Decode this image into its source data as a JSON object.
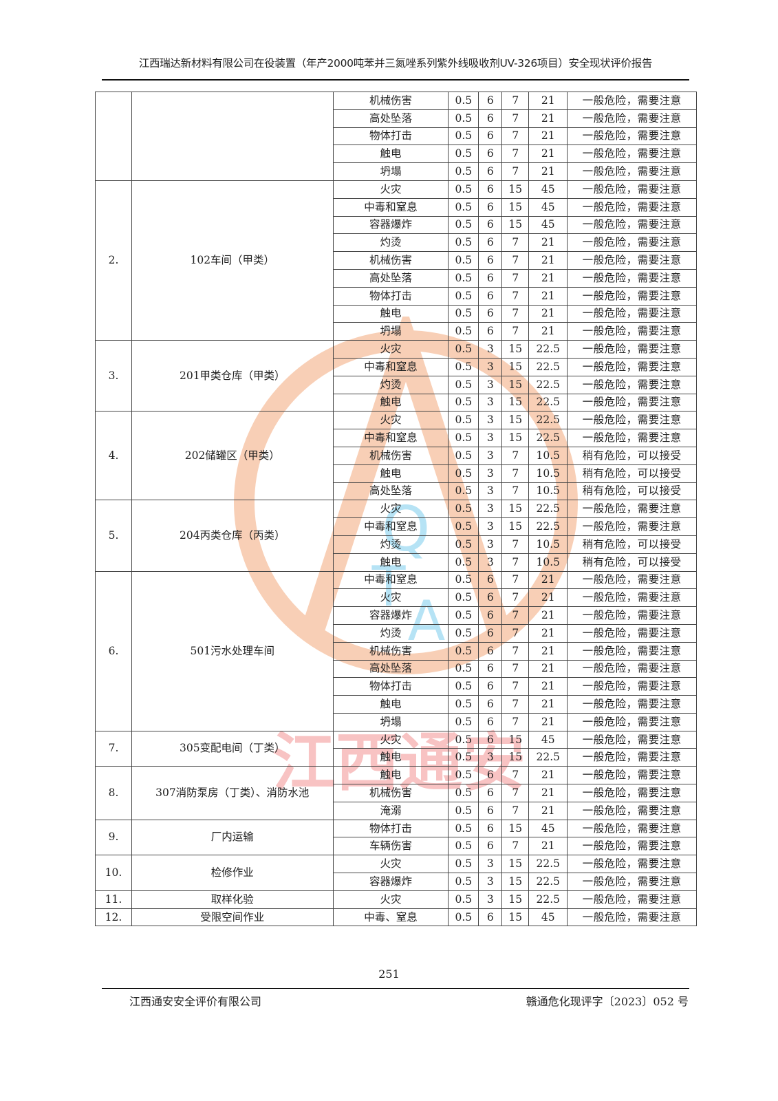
{
  "header": {
    "title": "江西瑞达新材料有限公司在役装置（年产2000吨苯并三氮唑系列紫外线吸收剂UV-326项目）安全现状评价报告"
  },
  "watermark": {
    "logo_text": "QTA",
    "stamp_text": "江西通安",
    "colors": {
      "ring": "#f08a4b",
      "letters": "#4bbbe8",
      "stamp": "#f06a6a"
    }
  },
  "table": {
    "groups": [
      {
        "no": "",
        "name": "",
        "rows": [
          [
            "机械伤害",
            "0.5",
            "6",
            "7",
            "21",
            "一般危险，需要注意"
          ],
          [
            "高处坠落",
            "0.5",
            "6",
            "7",
            "21",
            "一般危险，需要注意"
          ],
          [
            "物体打击",
            "0.5",
            "6",
            "7",
            "21",
            "一般危险，需要注意"
          ],
          [
            "触电",
            "0.5",
            "6",
            "7",
            "21",
            "一般危险，需要注意"
          ],
          [
            "坍塌",
            "0.5",
            "6",
            "7",
            "21",
            "一般危险，需要注意"
          ]
        ]
      },
      {
        "no": "2.",
        "name": "102车间（甲类）",
        "rows": [
          [
            "火灾",
            "0.5",
            "6",
            "15",
            "45",
            "一般危险，需要注意"
          ],
          [
            "中毒和窒息",
            "0.5",
            "6",
            "15",
            "45",
            "一般危险，需要注意"
          ],
          [
            "容器爆炸",
            "0.5",
            "6",
            "15",
            "45",
            "一般危险，需要注意"
          ],
          [
            "灼烫",
            "0.5",
            "6",
            "7",
            "21",
            "一般危险，需要注意"
          ],
          [
            "机械伤害",
            "0.5",
            "6",
            "7",
            "21",
            "一般危险，需要注意"
          ],
          [
            "高处坠落",
            "0.5",
            "6",
            "7",
            "21",
            "一般危险，需要注意"
          ],
          [
            "物体打击",
            "0.5",
            "6",
            "7",
            "21",
            "一般危险，需要注意"
          ],
          [
            "触电",
            "0.5",
            "6",
            "7",
            "21",
            "一般危险，需要注意"
          ],
          [
            "坍塌",
            "0.5",
            "6",
            "7",
            "21",
            "一般危险，需要注意"
          ]
        ]
      },
      {
        "no": "3.",
        "name": "201甲类仓库（甲类）",
        "rows": [
          [
            "火灾",
            "0.5",
            "3",
            "15",
            "22.5",
            "一般危险，需要注意"
          ],
          [
            "中毒和窒息",
            "0.5",
            "3",
            "15",
            "22.5",
            "一般危险，需要注意"
          ],
          [
            "灼烫",
            "0.5",
            "3",
            "15",
            "22.5",
            "一般危险，需要注意"
          ],
          [
            "触电",
            "0.5",
            "3",
            "15",
            "22.5",
            "一般危险，需要注意"
          ]
        ]
      },
      {
        "no": "4.",
        "name": "202储罐区（甲类）",
        "rows": [
          [
            "火灾",
            "0.5",
            "3",
            "15",
            "22.5",
            "一般危险，需要注意"
          ],
          [
            "中毒和窒息",
            "0.5",
            "3",
            "15",
            "22.5",
            "一般危险，需要注意"
          ],
          [
            "机械伤害",
            "0.5",
            "3",
            "7",
            "10.5",
            "稍有危险，可以接受"
          ],
          [
            "触电",
            "0.5",
            "3",
            "7",
            "10.5",
            "稍有危险，可以接受"
          ],
          [
            "高处坠落",
            "0.5",
            "3",
            "7",
            "10.5",
            "稍有危险，可以接受"
          ]
        ]
      },
      {
        "no": "5.",
        "name": "204丙类仓库（丙类）",
        "rows": [
          [
            "火灾",
            "0.5",
            "3",
            "15",
            "22.5",
            "一般危险，需要注意"
          ],
          [
            "中毒和窒息",
            "0.5",
            "3",
            "15",
            "22.5",
            "一般危险，需要注意"
          ],
          [
            "灼烫",
            "0.5",
            "3",
            "7",
            "10.5",
            "稍有危险，可以接受"
          ],
          [
            "触电",
            "0.5",
            "3",
            "7",
            "10.5",
            "稍有危险，可以接受"
          ]
        ]
      },
      {
        "no": "6.",
        "name": "501污水处理车间",
        "rows": [
          [
            "中毒和窒息",
            "0.5",
            "6",
            "7",
            "21",
            "一般危险，需要注意"
          ],
          [
            "火灾",
            "0.5",
            "6",
            "7",
            "21",
            "一般危险，需要注意"
          ],
          [
            "容器爆炸",
            "0.5",
            "6",
            "7",
            "21",
            "一般危险，需要注意"
          ],
          [
            "灼烫",
            "0.5",
            "6",
            "7",
            "21",
            "一般危险，需要注意"
          ],
          [
            "机械伤害",
            "0.5",
            "6",
            "7",
            "21",
            "一般危险，需要注意"
          ],
          [
            "高处坠落",
            "0.5",
            "6",
            "7",
            "21",
            "一般危险，需要注意"
          ],
          [
            "物体打击",
            "0.5",
            "6",
            "7",
            "21",
            "一般危险，需要注意"
          ],
          [
            "触电",
            "0.5",
            "6",
            "7",
            "21",
            "一般危险，需要注意"
          ],
          [
            "坍塌",
            "0.5",
            "6",
            "7",
            "21",
            "一般危险，需要注意"
          ]
        ]
      },
      {
        "no": "7.",
        "name": "305变配电间（丁类）",
        "rows": [
          [
            "火灾",
            "0.5",
            "6",
            "15",
            "45",
            "一般危险，需要注意"
          ],
          [
            "触电",
            "0.5",
            "3",
            "15",
            "22.5",
            "一般危险，需要注意"
          ]
        ]
      },
      {
        "no": "8.",
        "name": "307消防泵房（丁类）、消防水池",
        "rows": [
          [
            "触电",
            "0.5",
            "6",
            "7",
            "21",
            "一般危险，需要注意"
          ],
          [
            "机械伤害",
            "0.5",
            "6",
            "7",
            "21",
            "一般危险，需要注意"
          ],
          [
            "淹溺",
            "0.5",
            "6",
            "7",
            "21",
            "一般危险，需要注意"
          ]
        ]
      },
      {
        "no": "9.",
        "name": "厂内运输",
        "rows": [
          [
            "物体打击",
            "0.5",
            "6",
            "15",
            "45",
            "一般危险，需要注意"
          ],
          [
            "车辆伤害",
            "0.5",
            "6",
            "7",
            "21",
            "一般危险，需要注意"
          ]
        ]
      },
      {
        "no": "10.",
        "name": "检修作业",
        "rows": [
          [
            "火灾",
            "0.5",
            "3",
            "15",
            "22.5",
            "一般危险，需要注意"
          ],
          [
            "容器爆炸",
            "0.5",
            "3",
            "15",
            "22.5",
            "一般危险，需要注意"
          ]
        ]
      },
      {
        "no": "11.",
        "name": "取样化验",
        "rows": [
          [
            "火灾",
            "0.5",
            "3",
            "15",
            "22.5",
            "一般危险，需要注意"
          ]
        ]
      },
      {
        "no": "12.",
        "name": "受限空间作业",
        "rows": [
          [
            "中毒、窒息",
            "0.5",
            "6",
            "15",
            "45",
            "一般危险，需要注意"
          ]
        ]
      }
    ]
  },
  "footer": {
    "page_number": "251",
    "company": "江西通安安全评价有限公司",
    "doc_number": "赣通危化现评字〔2023〕052 号"
  }
}
